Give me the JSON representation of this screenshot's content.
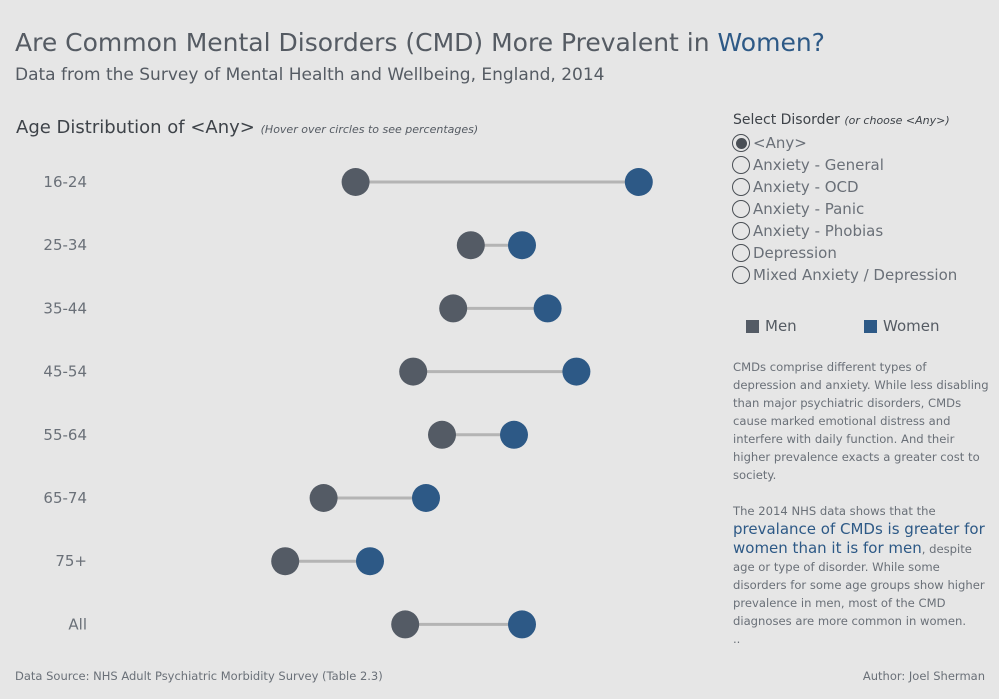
{
  "title": {
    "part1": "Are Common Mental Disorders (CMD) More Prevalent in ",
    "highlight": "Women?"
  },
  "subtitle": "Data from the Survey of Mental Health and Wellbeing, England, 2014",
  "chart_heading": {
    "main": "Age Distribution of <Any>",
    "note": "(Hover over circles to see percentages)"
  },
  "filter": {
    "title": "Select Disorder",
    "note": "(or choose <Any>)",
    "options": [
      "<Any>",
      "Anxiety - General",
      "Anxiety - OCD",
      "Anxiety - Panic",
      "Anxiety - Phobias",
      "Depression",
      "Mixed Anxiety / Depression"
    ],
    "selected_index": 0
  },
  "legend": {
    "men": "Men",
    "women": "Women"
  },
  "colors": {
    "men": "#545b65",
    "women": "#2d5986",
    "connector": "#b4b4b4",
    "background": "#e6e6e6"
  },
  "description": {
    "p1": "CMDs comprise different types of depression and anxiety.  While less disabling than major psychiatric disorders, CMDs cause marked emotional distress and interfere with daily function.  And their higher prevalence exacts a greater cost to society.",
    "p2_before": "The 2014 NHS data shows that the",
    "p2_highlight": "prevalance of CMDs is greater for women than it is for men",
    "p2_after": ", despite age or type of disorder.  While some disorders for some age groups show higher prevalence in men, most of the CMD diagnoses are more common in women.",
    "p3": ".."
  },
  "footer": {
    "source": "Data Source: NHS Adult Psychiatric Morbidity Survey (Table 2.3)",
    "author": "Author: Joel Sherman"
  },
  "chart_data": {
    "type": "dumbbell",
    "categories": [
      "16-24",
      "25-34",
      "35-44",
      "45-54",
      "55-64",
      "65-74",
      "75+",
      "All"
    ],
    "series": [
      {
        "name": "Men",
        "values": [
          9.1,
          16.3,
          15.2,
          12.7,
          14.5,
          7.1,
          4.7,
          12.2
        ]
      },
      {
        "name": "Women",
        "values": [
          26.8,
          19.5,
          21.1,
          22.9,
          19.0,
          13.5,
          10.0,
          19.5
        ]
      }
    ],
    "xlim": [
      -5,
      30
    ]
  }
}
